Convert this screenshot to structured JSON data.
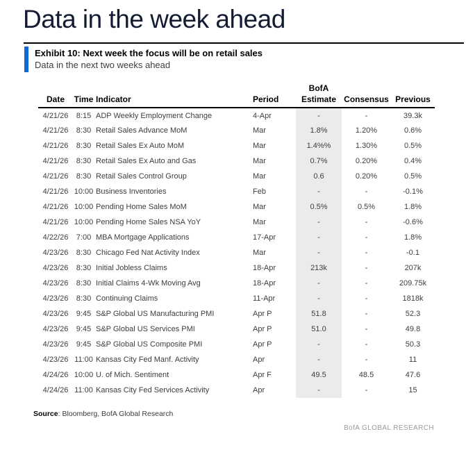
{
  "page": {
    "title": "Data in the week ahead",
    "footer_brand": "BofA GLOBAL RESEARCH"
  },
  "exhibit": {
    "title": "Exhibit 10: Next week the focus will be on retail sales",
    "subtitle": "Data in the next two weeks ahead",
    "accent_color": "#1268d2"
  },
  "table": {
    "estimate_shade_color": "#ebebeb",
    "columns": [
      {
        "key": "date",
        "label": "Date"
      },
      {
        "key": "time",
        "label": "Time"
      },
      {
        "key": "indicator",
        "label": "Indicator"
      },
      {
        "key": "period",
        "label": "Period"
      },
      {
        "key": "estimate",
        "label": "Estimate",
        "label_top": "BofA"
      },
      {
        "key": "consensus",
        "label": "Consensus"
      },
      {
        "key": "previous",
        "label": "Previous"
      }
    ],
    "rows": [
      [
        "4/21/26",
        "8:15",
        "ADP Weekly Employment Change",
        "4-Apr",
        "-",
        "-",
        "39.3k"
      ],
      [
        "4/21/26",
        "8:30",
        "Retail Sales Advance MoM",
        "Mar",
        "1.8%",
        "1.20%",
        "0.6%"
      ],
      [
        "4/21/26",
        "8:30",
        "Retail Sales Ex Auto MoM",
        "Mar",
        "1.4%%",
        "1.30%",
        "0.5%"
      ],
      [
        "4/21/26",
        "8:30",
        "Retail Sales Ex Auto and Gas",
        "Mar",
        "0.7%",
        "0.20%",
        "0.4%"
      ],
      [
        "4/21/26",
        "8:30",
        "Retail Sales Control Group",
        "Mar",
        "0.6",
        "0.20%",
        "0.5%"
      ],
      [
        "4/21/26",
        "10:00",
        "Business Inventories",
        "Feb",
        "-",
        "-",
        "-0.1%"
      ],
      [
        "4/21/26",
        "10:00",
        "Pending Home Sales MoM",
        "Mar",
        "0.5%",
        "0.5%",
        "1.8%"
      ],
      [
        "4/21/26",
        "10:00",
        "Pending Home Sales NSA YoY",
        "Mar",
        "-",
        "-",
        "-0.6%"
      ],
      [
        "4/22/26",
        "7:00",
        "MBA Mortgage Applications",
        "17-Apr",
        "-",
        "-",
        "1.8%"
      ],
      [
        "4/23/26",
        "8:30",
        "Chicago Fed Nat Activity Index",
        "Mar",
        "-",
        "-",
        "-0.1"
      ],
      [
        "4/23/26",
        "8:30",
        "Initial Jobless Claims",
        "18-Apr",
        "213k",
        "-",
        "207k"
      ],
      [
        "4/23/26",
        "8:30",
        "Initial Claims 4-Wk Moving Avg",
        "18-Apr",
        "-",
        "-",
        "209.75k"
      ],
      [
        "4/23/26",
        "8:30",
        "Continuing Claims",
        "11-Apr",
        "-",
        "-",
        "1818k"
      ],
      [
        "4/23/26",
        "9:45",
        "S&P Global US Manufacturing PMI",
        "Apr P",
        "51.8",
        "-",
        "52.3"
      ],
      [
        "4/23/26",
        "9:45",
        "S&P Global US Services PMI",
        "Apr P",
        "51.0",
        "-",
        "49.8"
      ],
      [
        "4/23/26",
        "9:45",
        "S&P Global US Composite PMI",
        "Apr P",
        "-",
        "-",
        "50.3"
      ],
      [
        "4/23/26",
        "11:00",
        "Kansas City Fed Manf. Activity",
        "Apr",
        "-",
        "-",
        "11"
      ],
      [
        "4/24/26",
        "10:00",
        "U. of Mich. Sentiment",
        "Apr F",
        "49.5",
        "48.5",
        "47.6"
      ],
      [
        "4/24/26",
        "11:00",
        "Kansas City Fed Services Activity",
        "Apr",
        "-",
        "-",
        "15"
      ]
    ]
  },
  "source": {
    "label": "Source",
    "rest": ": Bloomberg, BofA Global Research"
  }
}
